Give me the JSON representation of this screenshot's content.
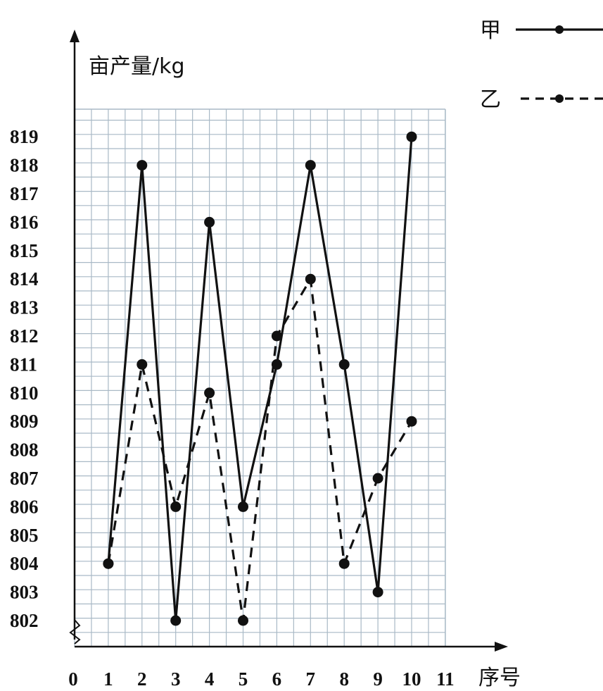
{
  "chart_data": {
    "type": "line",
    "ylabel": "亩产量/kg",
    "xlabel": "序号",
    "origin_label": "0",
    "x_ticks": [
      "1",
      "2",
      "3",
      "4",
      "5",
      "6",
      "7",
      "8",
      "9",
      "10",
      "11"
    ],
    "y_ticks": [
      "802",
      "803",
      "804",
      "805",
      "806",
      "807",
      "808",
      "809",
      "810",
      "811",
      "812",
      "813",
      "814",
      "815",
      "816",
      "817",
      "818",
      "819"
    ],
    "x": [
      1,
      2,
      3,
      4,
      5,
      6,
      7,
      8,
      9,
      10
    ],
    "xlim": [
      0,
      11
    ],
    "ylim": [
      801,
      820
    ],
    "y_axis_break": true,
    "grid": true,
    "legend_position": "top-right",
    "series": [
      {
        "name": "甲",
        "style": "solid",
        "values": [
          804,
          818,
          802,
          816,
          806,
          811,
          818,
          811,
          803,
          819
        ]
      },
      {
        "name": "乙",
        "style": "dashed",
        "values": [
          804,
          811,
          806,
          810,
          802,
          812,
          814,
          804,
          807,
          809
        ]
      }
    ],
    "colors": {
      "line": "#111111",
      "grid": "#a9b9c6",
      "background": "#ffffff"
    }
  }
}
